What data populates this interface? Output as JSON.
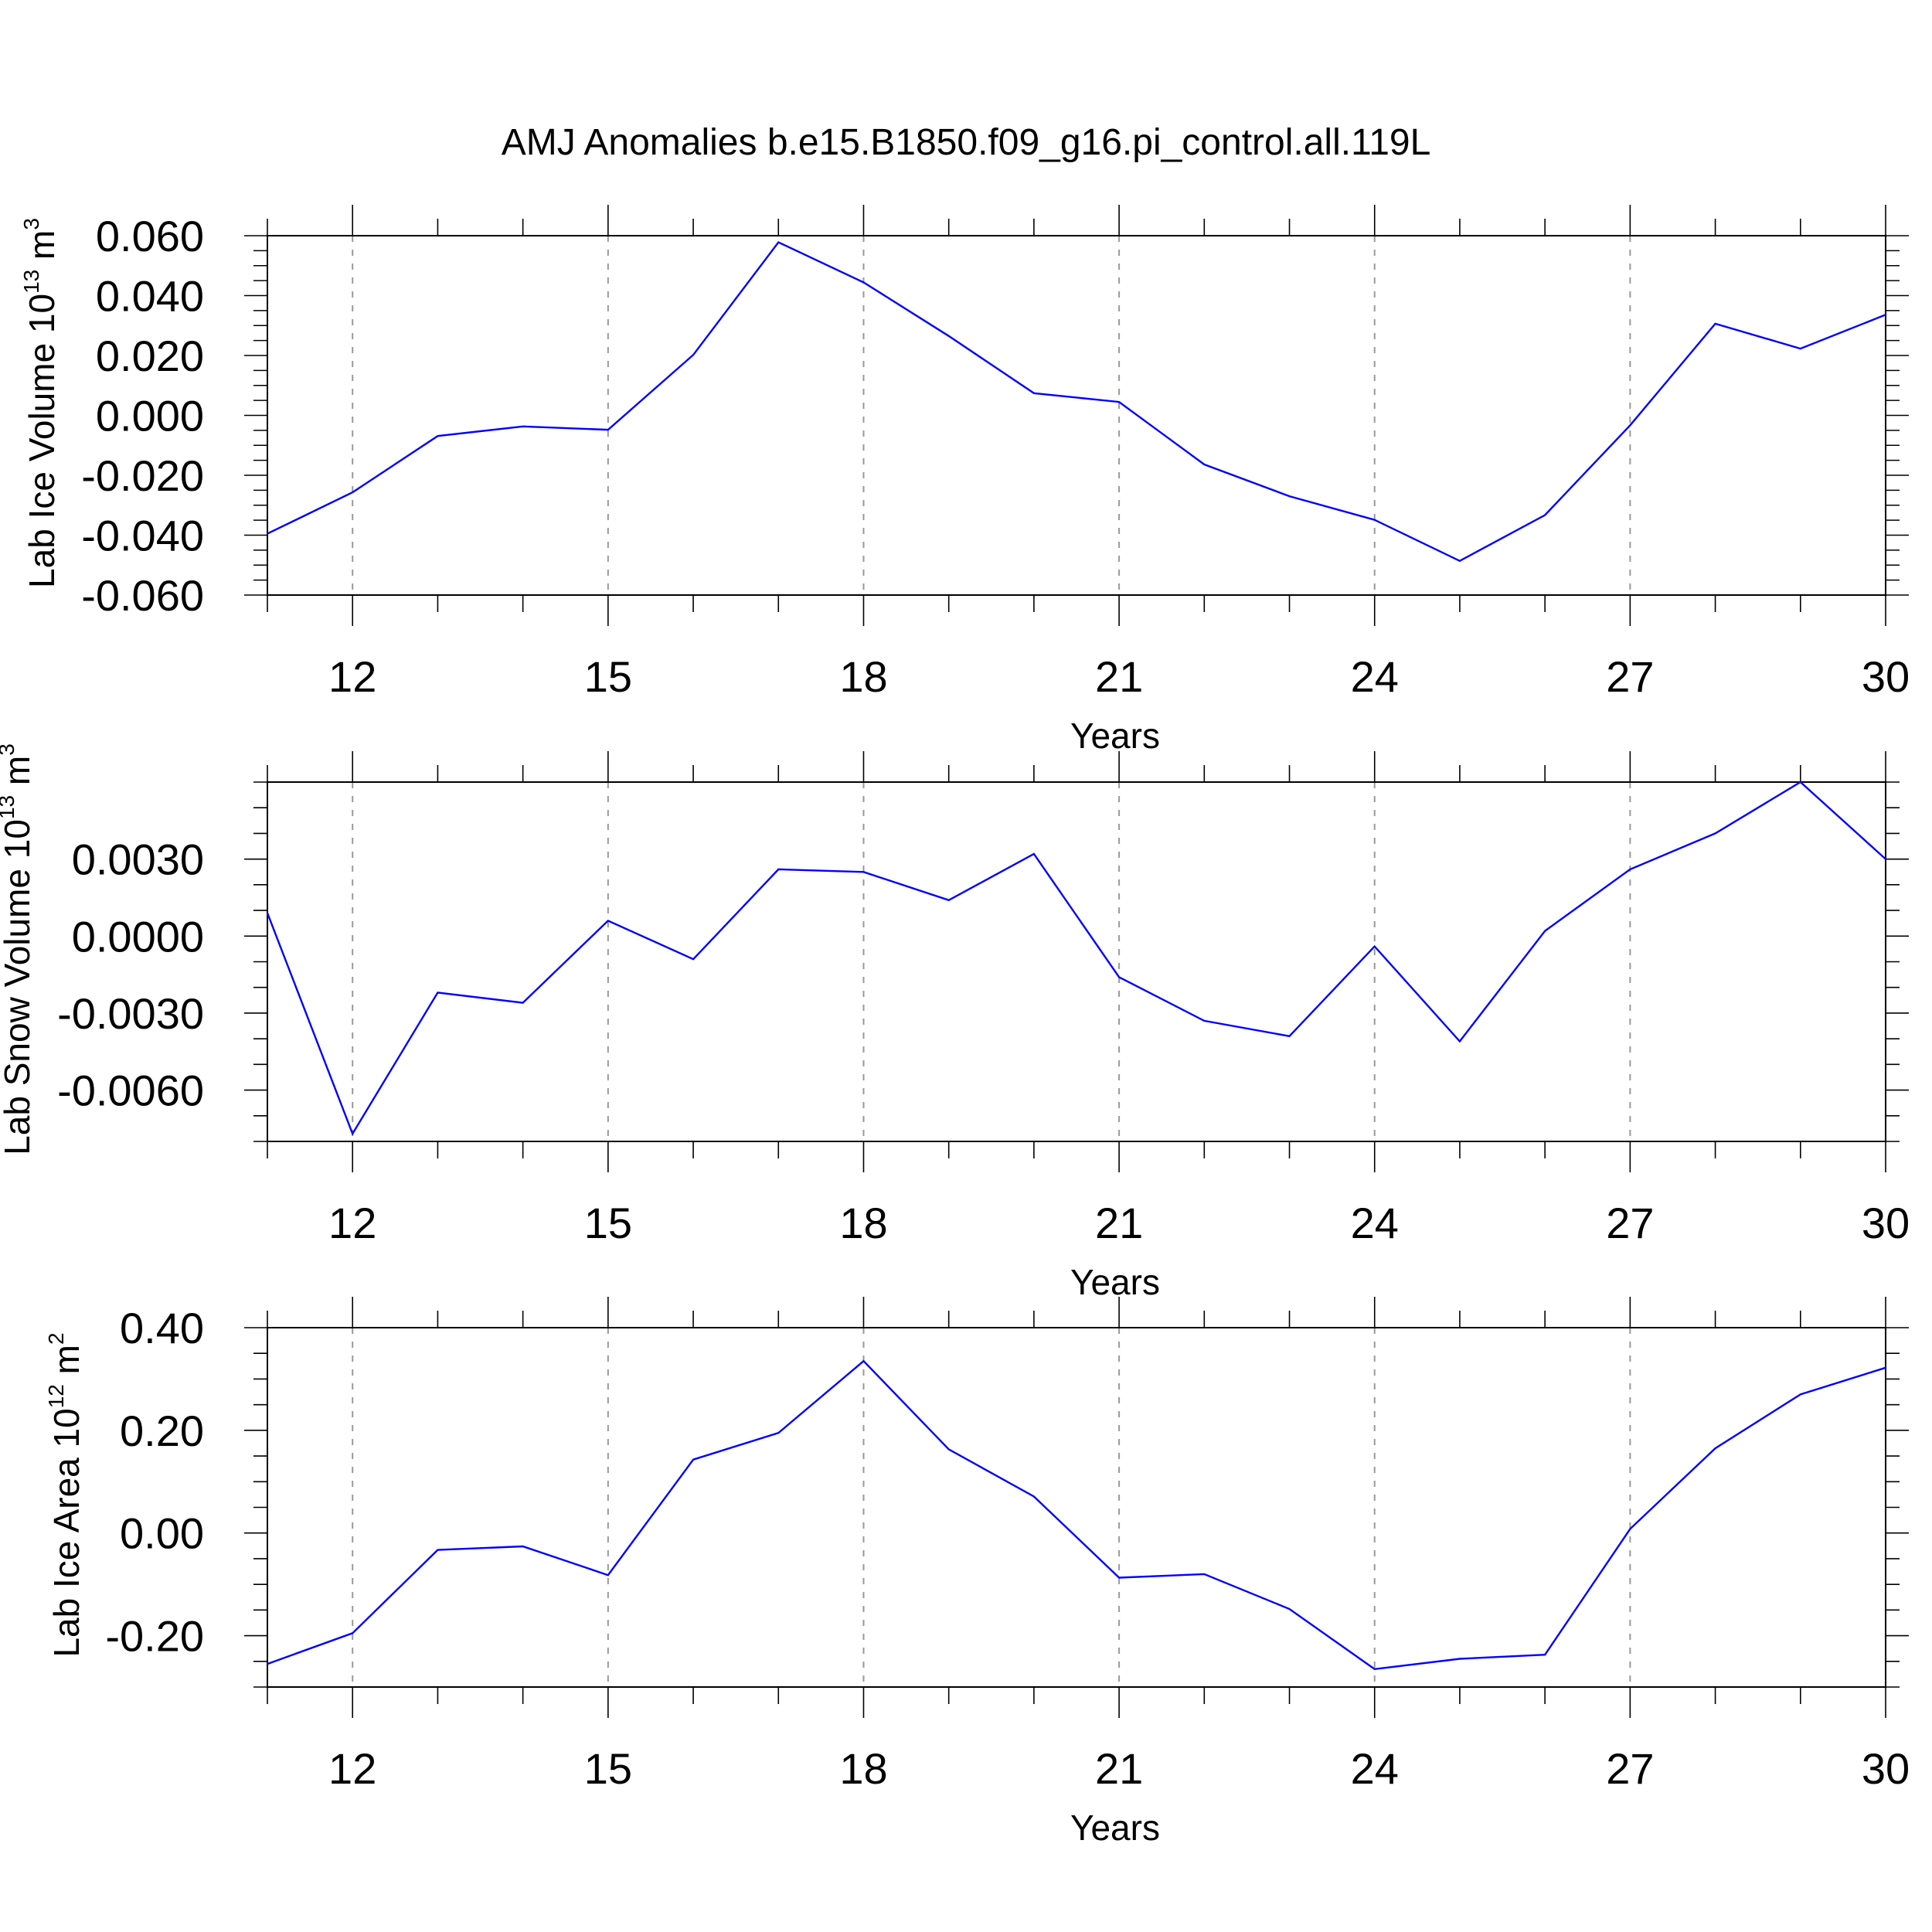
{
  "title": "AMJ Anomalies b.e15.B1850.f09_g16.pi_control.all.119L",
  "line_color": "#0000ff",
  "chart_data": [
    {
      "type": "line",
      "xlabel": "Years",
      "ylabel_main": "Lab Ice Volume 10",
      "ylabel_exp": "13",
      "ylabel_unit": " m",
      "ylabel_unit_exp": "3",
      "x": [
        11,
        12,
        13,
        14,
        15,
        16,
        17,
        18,
        19,
        20,
        21,
        22,
        23,
        24,
        25,
        26,
        27,
        28,
        29,
        30
      ],
      "y": [
        -0.0395,
        -0.0257,
        -0.0069,
        -0.0037,
        -0.0048,
        0.0202,
        0.0578,
        0.0444,
        0.0265,
        0.0074,
        0.0045,
        -0.0164,
        -0.027,
        -0.0349,
        -0.0486,
        -0.0333,
        -0.0033,
        0.0306,
        0.0223,
        0.0336
      ],
      "xlim": [
        11,
        30
      ],
      "ylim": [
        -0.06,
        0.06
      ],
      "xticks": [
        12,
        15,
        18,
        21,
        24,
        27,
        30
      ],
      "xtick_labels": [
        "12",
        "15",
        "18",
        "21",
        "24",
        "27",
        "30"
      ],
      "yticks": [
        0.06,
        0.04,
        0.02,
        0.0,
        -0.02,
        -0.04,
        -0.06
      ],
      "ytick_labels": [
        "0.060",
        "0.040",
        "0.020",
        "0.000",
        "-0.020",
        "-0.040",
        "-0.060"
      ],
      "y_minor_step": 0.005,
      "grid": "dashed vertical at major x ticks"
    },
    {
      "type": "line",
      "xlabel": "Years",
      "ylabel_main": "Lab Snow Volume 10",
      "ylabel_exp": "13",
      "ylabel_unit": " m",
      "ylabel_unit_exp": "3",
      "x": [
        11,
        12,
        13,
        14,
        15,
        16,
        17,
        18,
        19,
        20,
        21,
        22,
        23,
        24,
        25,
        26,
        27,
        28,
        29,
        30
      ],
      "y": [
        0.0009,
        -0.0077,
        -0.0022,
        -0.0026,
        0.0006,
        -0.0009,
        0.0026,
        0.0025,
        0.0014,
        0.0032,
        -0.0016,
        -0.0033,
        -0.0039,
        -0.0004,
        -0.0041,
        0.0002,
        0.0026,
        0.004,
        0.006,
        0.003
      ],
      "xlim": [
        11,
        30
      ],
      "ylim": [
        -0.008,
        0.006
      ],
      "xticks": [
        12,
        15,
        18,
        21,
        24,
        27,
        30
      ],
      "xtick_labels": [
        "12",
        "15",
        "18",
        "21",
        "24",
        "27",
        "30"
      ],
      "yticks": [
        0.003,
        0.0,
        -0.003,
        -0.006
      ],
      "ytick_labels": [
        "0.0030",
        "0.0000",
        "-0.0030",
        "-0.0060"
      ],
      "y_minor_step": 0.001,
      "grid": "dashed vertical at major x ticks"
    },
    {
      "type": "line",
      "xlabel": "Years",
      "ylabel_main": "Lab Ice Area 10",
      "ylabel_exp": "12",
      "ylabel_unit": " m",
      "ylabel_unit_exp": "2",
      "x": [
        11,
        12,
        13,
        14,
        15,
        16,
        17,
        18,
        19,
        20,
        21,
        22,
        23,
        24,
        25,
        26,
        27,
        28,
        29,
        30
      ],
      "y": [
        -0.255,
        -0.195,
        -0.033,
        -0.026,
        -0.082,
        0.143,
        0.195,
        0.335,
        0.163,
        0.071,
        -0.087,
        -0.08,
        -0.148,
        -0.265,
        -0.245,
        -0.237,
        0.008,
        0.165,
        0.27,
        0.322
      ],
      "xlim": [
        11,
        30
      ],
      "ylim": [
        -0.3,
        0.4
      ],
      "xticks": [
        12,
        15,
        18,
        21,
        24,
        27,
        30
      ],
      "xtick_labels": [
        "12",
        "15",
        "18",
        "21",
        "24",
        "27",
        "30"
      ],
      "yticks": [
        0.4,
        0.2,
        0.0,
        -0.2
      ],
      "ytick_labels": [
        "0.40",
        "0.20",
        "0.00",
        "-0.20"
      ],
      "y_minor_step": 0.05,
      "grid": "dashed vertical at major x ticks"
    }
  ]
}
